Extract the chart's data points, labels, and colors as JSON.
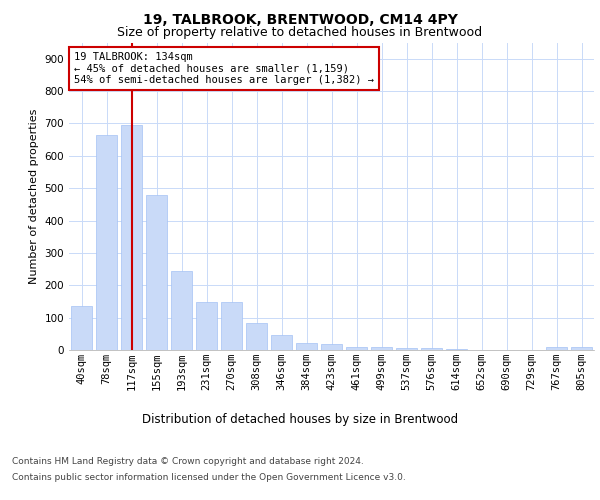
{
  "title": "19, TALBROOK, BRENTWOOD, CM14 4PY",
  "subtitle": "Size of property relative to detached houses in Brentwood",
  "xlabel": "Distribution of detached houses by size in Brentwood",
  "ylabel": "Number of detached properties",
  "footer_line1": "Contains HM Land Registry data © Crown copyright and database right 2024.",
  "footer_line2": "Contains public sector information licensed under the Open Government Licence v3.0.",
  "bar_labels": [
    "40sqm",
    "78sqm",
    "117sqm",
    "155sqm",
    "193sqm",
    "231sqm",
    "270sqm",
    "308sqm",
    "346sqm",
    "384sqm",
    "423sqm",
    "461sqm",
    "499sqm",
    "537sqm",
    "576sqm",
    "614sqm",
    "652sqm",
    "690sqm",
    "729sqm",
    "767sqm",
    "805sqm"
  ],
  "bar_values": [
    135,
    665,
    695,
    480,
    245,
    148,
    148,
    82,
    47,
    22,
    18,
    10,
    8,
    5,
    5,
    2,
    1,
    0,
    0,
    8,
    8
  ],
  "bar_color": "#c9daf8",
  "bar_edge_color": "#a4c2f4",
  "red_line_index": 2,
  "red_line_color": "#cc0000",
  "annotation_text": "19 TALBROOK: 134sqm\n← 45% of detached houses are smaller (1,159)\n54% of semi-detached houses are larger (1,382) →",
  "annotation_box_edge": "#cc0000",
  "annotation_box_fill": "#ffffff",
  "ylim": [
    0,
    950
  ],
  "yticks": [
    0,
    100,
    200,
    300,
    400,
    500,
    600,
    700,
    800,
    900
  ],
  "bg_color": "#ffffff",
  "grid_color": "#c9daf8",
  "title_fontsize": 10,
  "subtitle_fontsize": 9,
  "xlabel_fontsize": 8.5,
  "ylabel_fontsize": 8,
  "tick_fontsize": 7.5,
  "annotation_fontsize": 7.5,
  "footer_fontsize": 6.5
}
